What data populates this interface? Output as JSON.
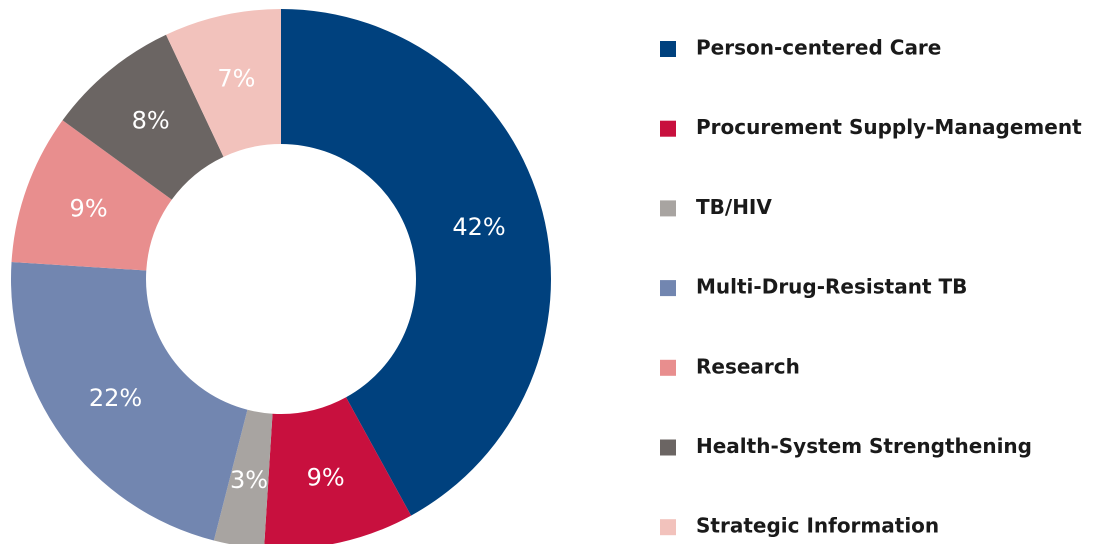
{
  "chart_data": {
    "type": "donut",
    "categories": [
      "Person-centered Care",
      "Procurement Supply-Management",
      "TB/HIV",
      "Multi-Drug-Resistant TB",
      "Research",
      "Health-System Strengthening",
      "Strategic Information"
    ],
    "values": [
      42,
      9,
      3,
      22,
      9,
      8,
      7
    ],
    "value_labels": [
      "42%",
      "9%",
      "3%",
      "22%",
      "9%",
      "8%",
      "7%"
    ],
    "colors": [
      "#00417e",
      "#c8103e",
      "#a8a4a1",
      "#7286b0",
      "#e88e8e",
      "#6b6563",
      "#f2c2bc"
    ],
    "legend": "right"
  }
}
